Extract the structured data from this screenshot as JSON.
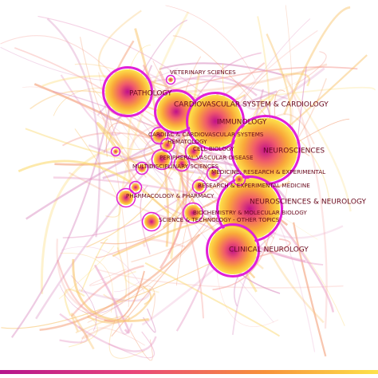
{
  "nodes": [
    {
      "label": "VETERINARY SCIENCES"
    },
    {
      "label": "PATHOLOGY"
    },
    {
      "label": "CARDIOVASCULAR SYSTEM & CARDIOLOGY"
    },
    {
      "label": "IMMUNOLOGY"
    },
    {
      "label": "CARDIAC & CARDIOVASCULAR SYSTEMS"
    },
    {
      "label": "HEMATOLOGY"
    },
    {
      "label": "CELL BIOLOGY"
    },
    {
      "label": "NEUROSCIENCES"
    },
    {
      "label": "PERIPHERAL VASCULAR DISEASE"
    },
    {
      "label": "MULTIDISCIPLINARY SCIENCES"
    },
    {
      "label": "MEDICINE, RESEARCH & EXPERIMENTAL"
    },
    {
      "label": "RESEARCH & EXPERIMENTAL MEDICINE"
    },
    {
      "label": "PHARMACOLOGY & PHARMACY"
    },
    {
      "label": "NEUROSCIENCES & NEUROLOGY"
    },
    {
      "label": "BIOCHEMISTRY & MOLECULAR BIOLOGY"
    },
    {
      "label": "SCIENCE & TECHNOLOGY - OTHER TOPICS"
    },
    {
      "label": "CLINICAL NEUROLOGY"
    }
  ]
}
